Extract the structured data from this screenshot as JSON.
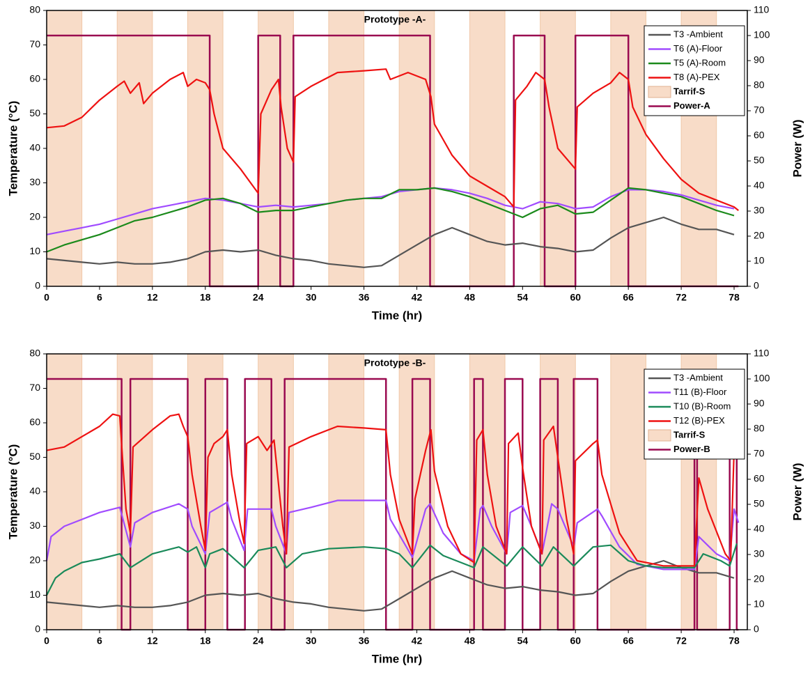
{
  "chart_data": [
    {
      "type": "line",
      "title": "Prototype -A-",
      "xlabel": "Time (hr)",
      "ylabel": "Temperature (°C)",
      "y2label": "Power (W)",
      "xlim": [
        0,
        79.5
      ],
      "xticks": [
        0,
        6,
        12,
        18,
        24,
        30,
        36,
        42,
        48,
        54,
        60,
        66,
        72,
        78
      ],
      "ylim": [
        0,
        80
      ],
      "yticks": [
        0,
        10,
        20,
        30,
        40,
        50,
        60,
        70,
        80
      ],
      "y2lim": [
        0,
        110
      ],
      "y2ticks": [
        0,
        10,
        20,
        30,
        40,
        50,
        60,
        70,
        80,
        90,
        100,
        110
      ],
      "legend": "upper right",
      "x": [
        0,
        2,
        4,
        6,
        8,
        10,
        12,
        14,
        16,
        18,
        20,
        22,
        24,
        26,
        28,
        30,
        32,
        34,
        36,
        38,
        40,
        42,
        44,
        46,
        48,
        50,
        52,
        54,
        56,
        58,
        60,
        62,
        64,
        66,
        68,
        70,
        72,
        74,
        76,
        78
      ],
      "bands": {
        "name": "Tarrif-S",
        "color": "#f8dcc8",
        "ranges": [
          [
            0,
            4
          ],
          [
            8,
            12
          ],
          [
            16,
            20
          ],
          [
            24,
            28
          ],
          [
            32,
            36
          ],
          [
            40,
            44
          ],
          [
            48,
            52
          ],
          [
            56,
            60
          ],
          [
            64,
            68
          ],
          [
            72,
            76
          ]
        ]
      },
      "series": [
        {
          "name": "T3 -Ambient",
          "color": "#555555",
          "values": [
            8,
            7.5,
            7,
            6.5,
            7,
            6.5,
            6.5,
            7,
            8,
            10,
            10.5,
            10,
            10.5,
            9,
            8,
            7.5,
            6.5,
            6,
            5.5,
            6,
            9,
            12,
            15,
            17,
            15,
            13,
            12,
            12.5,
            11.5,
            11,
            10,
            10.5,
            14,
            17,
            18.5,
            20,
            18,
            16.5,
            16.5,
            15
          ]
        },
        {
          "name": "T6 (A)-Floor",
          "color": "#a04bff",
          "values": [
            15,
            16,
            17,
            18,
            19.5,
            21,
            22.5,
            23.5,
            24.5,
            25.5,
            25,
            24,
            23,
            23.5,
            23,
            23.5,
            24,
            25,
            25.5,
            26,
            27.5,
            28,
            28.5,
            28,
            27,
            25.5,
            23.5,
            22.5,
            24.5,
            24,
            22.5,
            23,
            26,
            28,
            28,
            27.5,
            26.5,
            25,
            23.5,
            22.5
          ]
        },
        {
          "name": "T5 (A)-Room",
          "color": "#1b8a1b",
          "values": [
            10,
            12,
            13.5,
            15,
            17,
            19,
            20,
            21.5,
            23,
            25,
            25.5,
            24,
            21.5,
            22,
            22,
            23,
            24,
            25,
            25.5,
            25.5,
            28,
            28,
            28.5,
            27.5,
            26,
            24,
            22,
            20,
            22.5,
            23.5,
            21,
            21.5,
            25,
            28.5,
            28,
            27,
            26,
            24,
            22,
            20.5
          ]
        },
        {
          "name": "T8 (A)-PEX",
          "color": "#ee1111",
          "x": [
            0,
            2,
            4,
            6,
            8,
            8.8,
            9.5,
            10.5,
            11,
            12,
            14,
            15.5,
            16,
            17,
            18,
            18.5,
            19,
            20,
            22,
            24,
            24.3,
            25.5,
            26.3,
            26.6,
            27.3,
            28,
            28.2,
            30,
            33,
            36,
            38.5,
            39,
            41,
            43,
            43.6,
            44,
            46,
            48,
            50,
            52,
            53,
            53.2,
            54.5,
            55.5,
            56.5,
            57,
            58,
            60,
            60.2,
            62,
            64,
            65,
            66,
            66.5,
            68,
            70,
            72,
            74,
            76,
            78,
            78.5
          ],
          "values": [
            46,
            46.5,
            49,
            54,
            58,
            59.5,
            56,
            59,
            53,
            56,
            60,
            62,
            58,
            60,
            59,
            57,
            50,
            40,
            34,
            27,
            50,
            57,
            60,
            52,
            40,
            36,
            55,
            58,
            62,
            62.5,
            63,
            60,
            62,
            60,
            55,
            47,
            38,
            32,
            29,
            26,
            23,
            54,
            58,
            62,
            60,
            52,
            40,
            34,
            52,
            56,
            59,
            62,
            60,
            52,
            44,
            37,
            31,
            27,
            25,
            23,
            22
          ]
        },
        {
          "name": "Power-A",
          "color": "#9a0a50",
          "axis": "y2",
          "x": [
            0,
            18.5,
            18.5,
            24,
            24,
            26.5,
            26.5,
            28,
            28,
            43.5,
            43.5,
            53,
            53,
            56.5,
            56.5,
            60,
            60,
            66,
            66,
            78.5
          ],
          "values": [
            100,
            100,
            0,
            0,
            100,
            100,
            0,
            0,
            100,
            100,
            0,
            0,
            100,
            100,
            0,
            0,
            100,
            100,
            0,
            0
          ]
        }
      ]
    },
    {
      "type": "line",
      "title": "Prototype -B-",
      "xlabel": "Time (hr)",
      "ylabel": "Temperature (°C)",
      "y2label": "Power (W)",
      "xlim": [
        0,
        79.5
      ],
      "xticks": [
        0,
        6,
        12,
        18,
        24,
        30,
        36,
        42,
        48,
        54,
        60,
        66,
        72,
        78
      ],
      "ylim": [
        0,
        80
      ],
      "yticks": [
        0,
        10,
        20,
        30,
        40,
        50,
        60,
        70,
        80
      ],
      "y2lim": [
        0,
        110
      ],
      "y2ticks": [
        0,
        10,
        20,
        30,
        40,
        50,
        60,
        70,
        80,
        90,
        100,
        110
      ],
      "legend": "upper right",
      "x": [
        0,
        2,
        4,
        6,
        8,
        10,
        12,
        14,
        16,
        18,
        20,
        22,
        24,
        26,
        28,
        30,
        32,
        34,
        36,
        38,
        40,
        42,
        44,
        46,
        48,
        50,
        52,
        54,
        56,
        58,
        60,
        62,
        64,
        66,
        68,
        70,
        72,
        74,
        76,
        78
      ],
      "bands": {
        "name": "Tarrif-S",
        "color": "#f8dcc8",
        "ranges": [
          [
            0,
            4
          ],
          [
            8,
            12
          ],
          [
            16,
            20
          ],
          [
            24,
            28
          ],
          [
            32,
            36
          ],
          [
            40,
            44
          ],
          [
            48,
            52
          ],
          [
            56,
            60
          ],
          [
            64,
            68
          ],
          [
            72,
            76
          ]
        ]
      },
      "series": [
        {
          "name": "T3 -Ambient",
          "color": "#555555",
          "values": [
            8,
            7.5,
            7,
            6.5,
            7,
            6.5,
            6.5,
            7,
            8,
            10,
            10.5,
            10,
            10.5,
            9,
            8,
            7.5,
            6.5,
            6,
            5.5,
            6,
            9,
            12,
            15,
            17,
            15,
            13,
            12,
            12.5,
            11.5,
            11,
            10,
            10.5,
            14,
            17,
            18.5,
            20,
            18,
            16.5,
            16.5,
            15
          ]
        },
        {
          "name": "T11 (B)-Floor",
          "color": "#a04bff",
          "x": [
            0,
            0.5,
            2,
            4,
            6,
            8.3,
            9.5,
            10,
            12,
            15,
            16,
            16.5,
            18,
            18.5,
            20.5,
            21,
            22.4,
            22.8,
            25.5,
            26,
            27.2,
            27.5,
            30,
            33,
            38.5,
            39,
            41.5,
            43,
            43.5,
            45,
            47,
            48.5,
            49.2,
            49.5,
            50.5,
            52.2,
            52.6,
            54,
            55,
            56.2,
            57.3,
            58,
            59.8,
            60.2,
            62.5,
            63,
            65,
            67,
            70,
            73.5,
            74,
            76,
            77.5,
            78,
            78.5
          ],
          "values": [
            20,
            27,
            30,
            32,
            34,
            35.5,
            24,
            31,
            34,
            36.5,
            35,
            30,
            22,
            34,
            37,
            32,
            23,
            35,
            35,
            30,
            22,
            34,
            35.5,
            37.5,
            37.5,
            32,
            21,
            35,
            36.5,
            28,
            22,
            20,
            35,
            36,
            30,
            22,
            34,
            36,
            30,
            22,
            36.5,
            35,
            24,
            31,
            35,
            33,
            24,
            19,
            17.5,
            17.5,
            27,
            22,
            20,
            35,
            31
          ]
        },
        {
          "name": "T10 (B)-Room",
          "color": "#1a8a5a",
          "x": [
            0,
            1,
            2,
            4,
            6,
            8.3,
            9.5,
            12,
            15,
            16,
            17,
            18,
            18.5,
            20,
            22.4,
            24,
            26,
            27.2,
            29,
            32,
            36,
            38.5,
            40,
            41.5,
            43.5,
            45,
            48.5,
            49.5,
            52.2,
            54,
            56.2,
            57.5,
            59.8,
            62,
            64,
            66,
            68,
            70,
            73.5,
            74.5,
            76.5,
            77.5,
            78.3
          ],
          "values": [
            10,
            15,
            17,
            19.5,
            20.5,
            22,
            18,
            22,
            24,
            22.5,
            24,
            18,
            22,
            23.5,
            18,
            23,
            24,
            18,
            22,
            23.5,
            24,
            23.5,
            22,
            18,
            24.5,
            21.5,
            18,
            24,
            18.5,
            24,
            18.5,
            24,
            18.5,
            24,
            24.5,
            20,
            18.5,
            18,
            18,
            22,
            20,
            18.5,
            25
          ]
        },
        {
          "name": "T12 (B)-PEX",
          "color": "#ee1111",
          "x": [
            0,
            2,
            4,
            6,
            7.5,
            8.3,
            8.6,
            9,
            9.5,
            9.8,
            12,
            14,
            15,
            15.5,
            16,
            16.5,
            17.5,
            18,
            18.3,
            19,
            20,
            20.5,
            21,
            22,
            22.4,
            22.7,
            24,
            25,
            25.8,
            26.2,
            26.8,
            27.2,
            27.5,
            30,
            33,
            36,
            38.5,
            39,
            40,
            41.5,
            41.8,
            43,
            43.6,
            44,
            45.5,
            47,
            48.5,
            48.8,
            49.5,
            50,
            51,
            52.2,
            52.4,
            53.5,
            54,
            55,
            56.2,
            56.4,
            57.5,
            58,
            59,
            59.8,
            60,
            62,
            62.5,
            63,
            65,
            67,
            70,
            73.5,
            74,
            75,
            77,
            77.6,
            78,
            78.5
          ],
          "values": [
            52,
            53,
            56,
            59,
            62.5,
            62,
            50,
            35,
            28,
            53,
            58,
            62,
            62.5,
            59,
            56,
            45,
            30,
            23,
            50,
            54,
            56,
            58,
            45,
            30,
            25,
            54,
            56,
            52,
            55,
            45,
            30,
            22,
            53,
            56,
            59,
            58.5,
            58,
            45,
            32,
            22,
            38,
            52,
            58,
            46,
            30,
            22,
            19.5,
            55,
            58,
            45,
            30,
            22,
            54,
            57,
            47,
            30,
            22,
            55,
            59,
            50,
            32,
            22,
            49,
            54,
            55,
            45,
            28,
            20,
            18.5,
            18.5,
            44,
            35,
            22,
            20,
            52,
            50
          ]
        },
        {
          "name": "Power-B",
          "color": "#9a0a50",
          "axis": "y2",
          "x": [
            0,
            8.5,
            8.5,
            9.5,
            9.5,
            16,
            16,
            18,
            18,
            20.5,
            20.5,
            22.5,
            22.5,
            25.5,
            25.5,
            27,
            27,
            38.5,
            38.5,
            41.5,
            41.5,
            43.5,
            43.5,
            48.5,
            48.5,
            49.5,
            49.5,
            52,
            52,
            54,
            54,
            56,
            56,
            58,
            58,
            59.8,
            59.8,
            62.5,
            62.5,
            73.5,
            73.5,
            73.8,
            73.8,
            77.5,
            77.5,
            78.3,
            78.3,
            78.5
          ],
          "values": [
            100,
            100,
            0,
            0,
            100,
            100,
            0,
            0,
            100,
            100,
            0,
            0,
            100,
            100,
            0,
            0,
            100,
            100,
            0,
            0,
            100,
            100,
            0,
            0,
            100,
            100,
            0,
            0,
            100,
            100,
            0,
            0,
            100,
            100,
            0,
            0,
            100,
            100,
            0,
            0,
            100,
            100,
            0,
            0,
            100,
            100,
            0,
            0
          ]
        }
      ]
    }
  ]
}
